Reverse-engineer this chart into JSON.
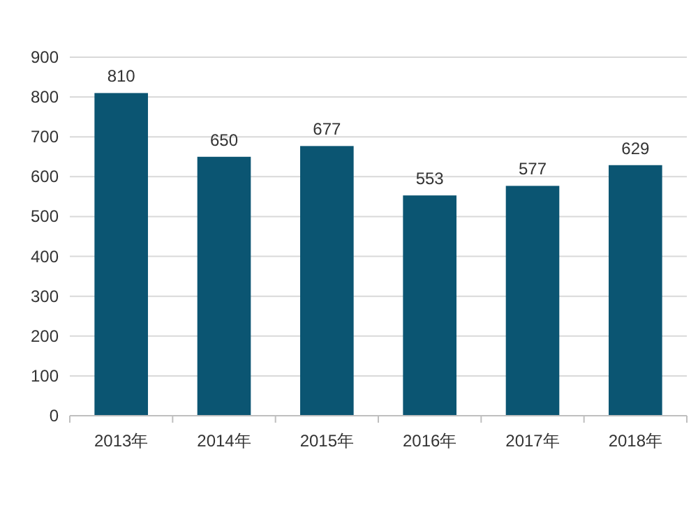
{
  "chart_data": {
    "type": "bar",
    "categories": [
      "2013年",
      "2014年",
      "2015年",
      "2016年",
      "2017年",
      "2018年"
    ],
    "values": [
      810,
      650,
      677,
      553,
      577,
      629
    ],
    "color": "#0b5572",
    "ylim": [
      0,
      900
    ],
    "yticks": [
      0,
      100,
      200,
      300,
      400,
      500,
      600,
      700,
      800,
      900
    ],
    "grid": "y",
    "data_labels": true
  }
}
